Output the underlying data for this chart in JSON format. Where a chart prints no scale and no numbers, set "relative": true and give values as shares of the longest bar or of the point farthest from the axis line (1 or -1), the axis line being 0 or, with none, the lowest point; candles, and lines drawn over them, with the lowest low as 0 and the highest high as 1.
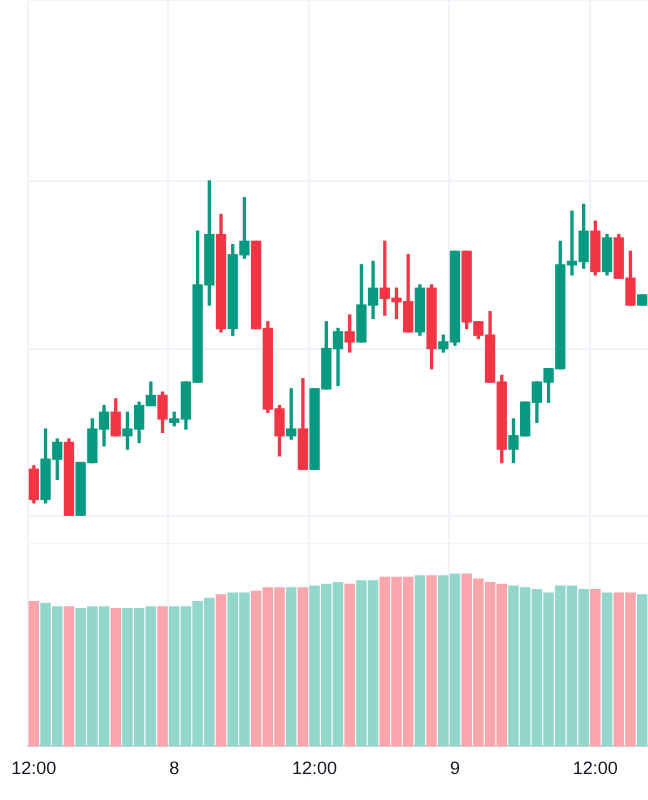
{
  "chart_data": [
    {
      "type": "candlestick",
      "relative": true,
      "grid": true,
      "categories": [
        null,
        null,
        null,
        null,
        null,
        null,
        null,
        null,
        null,
        null,
        null,
        null,
        null,
        null,
        null,
        null,
        null,
        null,
        null,
        null,
        null,
        null,
        null,
        null,
        null,
        null,
        null,
        null,
        null,
        null,
        null,
        null,
        null,
        null,
        null,
        null,
        null,
        null,
        null,
        null,
        null,
        null,
        null,
        null,
        null,
        null,
        null,
        null,
        null,
        null,
        null,
        null,
        null
      ],
      "ohlc": [
        [
          0.14,
          0.15,
          0.04,
          0.05
        ],
        [
          0.05,
          0.26,
          0.04,
          0.17
        ],
        [
          0.17,
          0.23,
          0.11,
          0.22
        ],
        [
          0.22,
          0.23,
          0,
          0
        ],
        [
          0,
          0.16,
          0,
          0.16
        ],
        [
          0.16,
          0.29,
          0.16,
          0.26
        ],
        [
          0.26,
          0.33,
          0.21,
          0.31
        ],
        [
          0.31,
          0.35,
          0.24,
          0.24
        ],
        [
          0.24,
          0.31,
          0.2,
          0.26
        ],
        [
          0.26,
          0.34,
          0.22,
          0.33
        ],
        [
          0.33,
          0.4,
          0.33,
          0.36
        ],
        [
          0.36,
          0.37,
          0.25,
          0.29
        ],
        [
          0.28,
          0.31,
          0.27,
          0.29
        ],
        [
          0.29,
          0.4,
          0.26,
          0.4
        ],
        [
          0.4,
          0.85,
          0.4,
          0.69
        ],
        [
          0.69,
          1,
          0.63,
          0.84
        ],
        [
          0.84,
          0.9,
          0.55,
          0.56
        ],
        [
          0.56,
          0.81,
          0.54,
          0.78
        ],
        [
          0.78,
          0.95,
          0.77,
          0.82
        ],
        [
          0.82,
          0.82,
          0.56,
          0.56
        ],
        [
          0.56,
          0.58,
          0.31,
          0.32
        ],
        [
          0.32,
          0.33,
          0.18,
          0.24
        ],
        [
          0.24,
          0.38,
          0.23,
          0.26
        ],
        [
          0.26,
          0.41,
          0.14,
          0.14
        ],
        [
          0.14,
          0.38,
          0.14,
          0.38
        ],
        [
          0.38,
          0.58,
          0.38,
          0.5
        ],
        [
          0.5,
          0.56,
          0.39,
          0.55
        ],
        [
          0.55,
          0.6,
          0.49,
          0.52
        ],
        [
          0.52,
          0.75,
          0.52,
          0.63
        ],
        [
          0.63,
          0.76,
          0.59,
          0.68
        ],
        [
          0.68,
          0.82,
          0.6,
          0.65
        ],
        [
          0.65,
          0.68,
          0.59,
          0.64
        ],
        [
          0.64,
          0.78,
          0.55,
          0.55
        ],
        [
          0.55,
          0.69,
          0.54,
          0.68
        ],
        [
          0.68,
          0.69,
          0.44,
          0.5
        ],
        [
          0.5,
          0.54,
          0.49,
          0.52
        ],
        [
          0.52,
          0.79,
          0.51,
          0.79
        ],
        [
          0.79,
          0.79,
          0.56,
          0.58
        ],
        [
          0.58,
          0.58,
          0.53,
          0.54
        ],
        [
          0.54,
          0.61,
          0.4,
          0.4
        ],
        [
          0.4,
          0.42,
          0.16,
          0.2
        ],
        [
          0.2,
          0.29,
          0.16,
          0.24
        ],
        [
          0.24,
          0.34,
          0.24,
          0.34
        ],
        [
          0.34,
          0.4,
          0.28,
          0.4
        ],
        [
          0.4,
          0.44,
          0.34,
          0.44
        ],
        [
          0.44,
          0.82,
          0.44,
          0.75
        ],
        [
          0.75,
          0.91,
          0.72,
          0.76
        ],
        [
          0.76,
          0.93,
          0.74,
          0.85
        ],
        [
          0.85,
          0.88,
          0.72,
          0.73
        ],
        [
          0.73,
          0.84,
          0.72,
          0.83
        ],
        [
          0.83,
          0.84,
          0.71,
          0.71
        ],
        [
          0.71,
          0.79,
          0.63,
          0.63
        ],
        [
          0.63,
          0.66,
          0.63,
          0.66
        ]
      ],
      "colors": [
        "#f23645",
        "#089981",
        "#089981",
        "#f23645",
        "#089981",
        "#089981",
        "#089981",
        "#f23645",
        "#089981",
        "#089981",
        "#089981",
        "#f23645",
        "#089981",
        "#089981",
        "#089981",
        "#089981",
        "#f23645",
        "#089981",
        "#089981",
        "#f23645",
        "#f23645",
        "#f23645",
        "#089981",
        "#f23645",
        "#089981",
        "#089981",
        "#089981",
        "#f23645",
        "#089981",
        "#089981",
        "#f23645",
        "#f23645",
        "#f23645",
        "#089981",
        "#f23645",
        "#089981",
        "#089981",
        "#f23645",
        "#f23645",
        "#f23645",
        "#f23645",
        "#089981",
        "#089981",
        "#089981",
        "#089981",
        "#089981",
        "#089981",
        "#089981",
        "#f23645",
        "#089981",
        "#f23645",
        "#f23645",
        "#089981"
      ]
    },
    {
      "type": "bar",
      "relative": true,
      "grid": "x",
      "tick_labels": "x",
      "categories": [
        "12:00",
        null,
        null,
        null,
        null,
        null,
        null,
        null,
        null,
        null,
        null,
        null,
        "8",
        null,
        null,
        null,
        null,
        null,
        null,
        null,
        null,
        null,
        null,
        null,
        "12:00",
        null,
        null,
        null,
        null,
        null,
        null,
        null,
        null,
        null,
        null,
        null,
        "9",
        null,
        null,
        null,
        null,
        null,
        null,
        null,
        null,
        null,
        null,
        null,
        "12:00",
        null,
        null,
        null,
        null
      ],
      "values": [
        0.84,
        0.83,
        0.81,
        0.81,
        0.8,
        0.81,
        0.81,
        0.8,
        0.8,
        0.8,
        0.81,
        0.81,
        0.81,
        0.81,
        0.84,
        0.86,
        0.88,
        0.89,
        0.89,
        0.9,
        0.92,
        0.92,
        0.92,
        0.92,
        0.93,
        0.94,
        0.95,
        0.94,
        0.96,
        0.96,
        0.98,
        0.98,
        0.98,
        0.99,
        0.99,
        0.99,
        1,
        1,
        0.97,
        0.95,
        0.94,
        0.93,
        0.92,
        0.91,
        0.89,
        0.93,
        0.93,
        0.91,
        0.91,
        0.89,
        0.89,
        0.89,
        0.88
      ],
      "colors": [
        "#f9a5ab",
        "#93d6cb",
        "#93d6cb",
        "#f9a5ab",
        "#93d6cb",
        "#93d6cb",
        "#93d6cb",
        "#f9a5ab",
        "#93d6cb",
        "#93d6cb",
        "#93d6cb",
        "#f9a5ab",
        "#93d6cb",
        "#93d6cb",
        "#93d6cb",
        "#93d6cb",
        "#f9a5ab",
        "#93d6cb",
        "#93d6cb",
        "#f9a5ab",
        "#f9a5ab",
        "#f9a5ab",
        "#93d6cb",
        "#f9a5ab",
        "#93d6cb",
        "#93d6cb",
        "#93d6cb",
        "#f9a5ab",
        "#93d6cb",
        "#93d6cb",
        "#f9a5ab",
        "#f9a5ab",
        "#f9a5ab",
        "#93d6cb",
        "#f9a5ab",
        "#93d6cb",
        "#93d6cb",
        "#f9a5ab",
        "#f9a5ab",
        "#f9a5ab",
        "#f9a5ab",
        "#93d6cb",
        "#93d6cb",
        "#93d6cb",
        "#93d6cb",
        "#93d6cb",
        "#93d6cb",
        "#93d6cb",
        "#f9a5ab",
        "#93d6cb",
        "#f9a5ab",
        "#f9a5ab",
        "#93d6cb"
      ]
    }
  ]
}
